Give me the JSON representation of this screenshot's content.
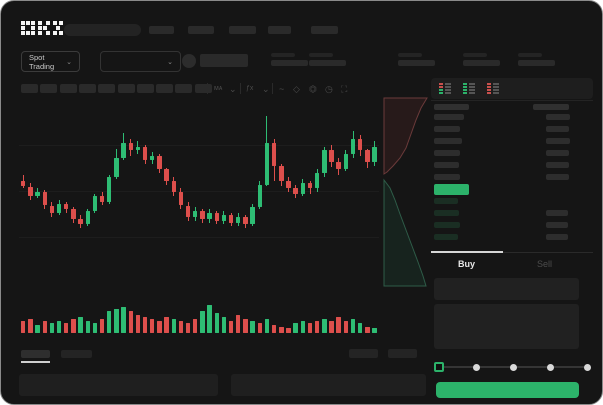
{
  "brand": {
    "logo": "OKX"
  },
  "colors": {
    "up_green": "#2ebd74",
    "down_red": "#dd4f4c",
    "accent_green": "#2cb26a",
    "window_bg": "#151515",
    "active_tab_underline": "#d6d6d6"
  },
  "market_header": {
    "pair_selector_label": "Spot Trading"
  },
  "trade_panel": {
    "tabs": [
      {
        "label": "Buy",
        "active": true
      },
      {
        "label": "Sell",
        "active": false
      }
    ],
    "slider_stops": 5,
    "buy_button_label": ""
  },
  "order_book": {
    "view_icons": [
      "book-both-icon",
      "book-bids-icon",
      "book-asks-icon"
    ],
    "header_bars": [
      36,
      36
    ],
    "ask_rows": [
      [
        30,
        24
      ],
      [
        26,
        23
      ],
      [
        28,
        24
      ],
      [
        26,
        23
      ],
      [
        25,
        23
      ],
      [
        26,
        23
      ]
    ],
    "last_price_bar": {
      "width": 35,
      "color": "#2cb26a"
    },
    "bid_rows": [
      [
        24,
        0
      ],
      [
        25,
        22
      ],
      [
        26,
        22
      ],
      [
        24,
        22
      ]
    ]
  },
  "chart_data": {
    "type": "candlestick",
    "title": "",
    "xlabel": "",
    "ylabel": "",
    "note": "values normalized 0-100 (no axis labels visible in screenshot)",
    "grid": true,
    "candles": [
      [
        58,
        55,
        61,
        54
      ],
      [
        55,
        50,
        57,
        48
      ],
      [
        50,
        52,
        54,
        49
      ],
      [
        52,
        45,
        53,
        43
      ],
      [
        45,
        41,
        47,
        39
      ],
      [
        41,
        46,
        48,
        40
      ],
      [
        46,
        43,
        47,
        41
      ],
      [
        43,
        38,
        44,
        36
      ],
      [
        38,
        35,
        40,
        33
      ],
      [
        35,
        42,
        43,
        34
      ],
      [
        42,
        50,
        51,
        41
      ],
      [
        50,
        47,
        52,
        45
      ],
      [
        47,
        60,
        61,
        46
      ],
      [
        60,
        70,
        75,
        59
      ],
      [
        70,
        78,
        83,
        69
      ],
      [
        78,
        74,
        80,
        71
      ],
      [
        74,
        76,
        79,
        72
      ],
      [
        76,
        69,
        77,
        67
      ],
      [
        69,
        71,
        73,
        67
      ],
      [
        71,
        64,
        72,
        62
      ],
      [
        64,
        58,
        65,
        56
      ],
      [
        58,
        52,
        60,
        50
      ],
      [
        52,
        45,
        54,
        43
      ],
      [
        45,
        39,
        47,
        37
      ],
      [
        39,
        42,
        44,
        37
      ],
      [
        42,
        38,
        43,
        36
      ],
      [
        38,
        41,
        43,
        36
      ],
      [
        41,
        37,
        42,
        35
      ],
      [
        37,
        40,
        42,
        35
      ],
      [
        40,
        36,
        41,
        34
      ],
      [
        36,
        39,
        41,
        34
      ],
      [
        39,
        35,
        40,
        33
      ],
      [
        35,
        44,
        46,
        34
      ],
      [
        44,
        56,
        58,
        43
      ],
      [
        56,
        78,
        92,
        55
      ],
      [
        78,
        66,
        80,
        58
      ],
      [
        66,
        58,
        67,
        55
      ],
      [
        58,
        54,
        60,
        52
      ],
      [
        54,
        51,
        56,
        49
      ],
      [
        51,
        57,
        59,
        50
      ],
      [
        57,
        54,
        58,
        51
      ],
      [
        54,
        62,
        64,
        52
      ],
      [
        62,
        74,
        76,
        60
      ],
      [
        74,
        68,
        77,
        65
      ],
      [
        68,
        64,
        70,
        61
      ],
      [
        64,
        72,
        74,
        63
      ],
      [
        72,
        80,
        84,
        70
      ],
      [
        80,
        74,
        82,
        71
      ],
      [
        74,
        68,
        75,
        65
      ],
      [
        68,
        76,
        79,
        66
      ]
    ],
    "volumes": [
      [
        12,
        "r"
      ],
      [
        14,
        "r"
      ],
      [
        8,
        "g"
      ],
      [
        12,
        "r"
      ],
      [
        10,
        "g"
      ],
      [
        12,
        "g"
      ],
      [
        10,
        "r"
      ],
      [
        14,
        "r"
      ],
      [
        16,
        "g"
      ],
      [
        12,
        "g"
      ],
      [
        10,
        "g"
      ],
      [
        14,
        "r"
      ],
      [
        22,
        "g"
      ],
      [
        24,
        "g"
      ],
      [
        26,
        "g"
      ],
      [
        22,
        "r"
      ],
      [
        18,
        "r"
      ],
      [
        16,
        "r"
      ],
      [
        14,
        "r"
      ],
      [
        12,
        "r"
      ],
      [
        16,
        "r"
      ],
      [
        14,
        "g"
      ],
      [
        12,
        "r"
      ],
      [
        10,
        "r"
      ],
      [
        14,
        "r"
      ],
      [
        22,
        "g"
      ],
      [
        28,
        "g"
      ],
      [
        20,
        "g"
      ],
      [
        16,
        "g"
      ],
      [
        12,
        "r"
      ],
      [
        18,
        "r"
      ],
      [
        14,
        "r"
      ],
      [
        12,
        "g"
      ],
      [
        10,
        "r"
      ],
      [
        14,
        "g"
      ],
      [
        8,
        "r"
      ],
      [
        6,
        "r"
      ],
      [
        5,
        "r"
      ],
      [
        10,
        "g"
      ],
      [
        12,
        "g"
      ],
      [
        10,
        "r"
      ],
      [
        12,
        "r"
      ],
      [
        14,
        "g"
      ],
      [
        12,
        "r"
      ],
      [
        16,
        "r"
      ],
      [
        12,
        "r"
      ],
      [
        14,
        "g"
      ],
      [
        10,
        "g"
      ],
      [
        6,
        "r"
      ],
      [
        5,
        "g"
      ]
    ]
  }
}
